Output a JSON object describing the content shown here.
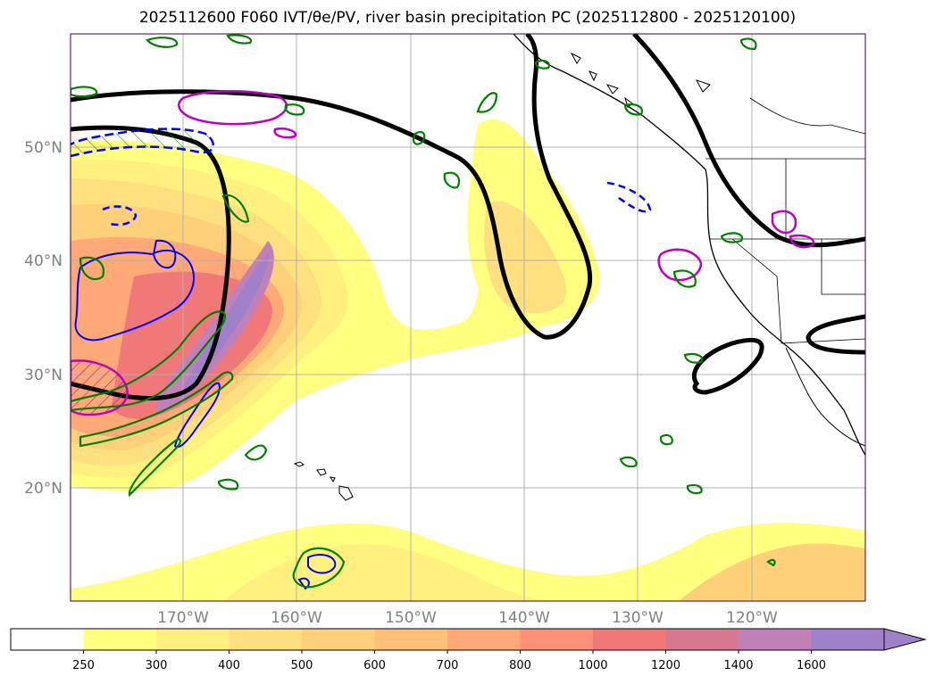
{
  "title": "2025112600 F060 IVT/θe/PV, river basin precipitation PC (2025112800 - 2025120100)",
  "colors": {
    "ocean": "#ffffff",
    "ivt_ridge": "#9d7ac7",
    "black_contour": "#000000",
    "green_contour": "#008000",
    "blue_contour": "#0000ff",
    "magenta_contour": "#c000c0",
    "grid": "#b0b0b0",
    "coast": "#000000"
  },
  "map": {
    "latitude_labels": [
      "50°N",
      "40°N",
      "30°N",
      "20°N"
    ],
    "longitude_labels": [
      "170°W",
      "160°W",
      "150°W",
      "140°W",
      "130°W",
      "120°W"
    ]
  },
  "colorbar": {
    "levels": [
      "250",
      "300",
      "400",
      "500",
      "600",
      "700",
      "800",
      "1000",
      "1200",
      "1400",
      "1600"
    ],
    "fills": [
      "#ffffff",
      "#ffff80",
      "#fff080",
      "#ffe080",
      "#ffd07a",
      "#ffc078",
      "#ffa878",
      "#ff9078",
      "#f07878",
      "#d87890",
      "#c080b8",
      "#a080c8"
    ]
  }
}
